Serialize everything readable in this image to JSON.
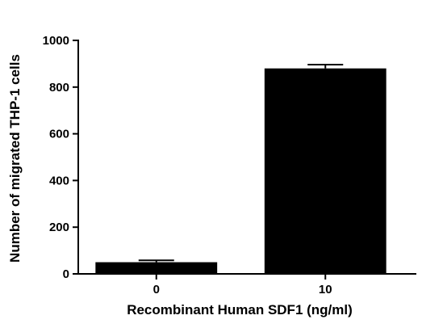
{
  "chart_data": {
    "type": "bar",
    "categories": [
      "0",
      "10"
    ],
    "values": [
      50,
      880
    ],
    "errors": [
      8,
      16
    ],
    "ylim": [
      0,
      1000
    ],
    "yticks": [
      "0",
      "200",
      "400",
      "600",
      "800",
      "1000"
    ],
    "xlabel": "Recombinant Human SDF1 (ng/ml)",
    "ylabel": "Number of migrated THP-1 cells",
    "grid": false,
    "legend": "none",
    "bar_color": "#000000"
  }
}
